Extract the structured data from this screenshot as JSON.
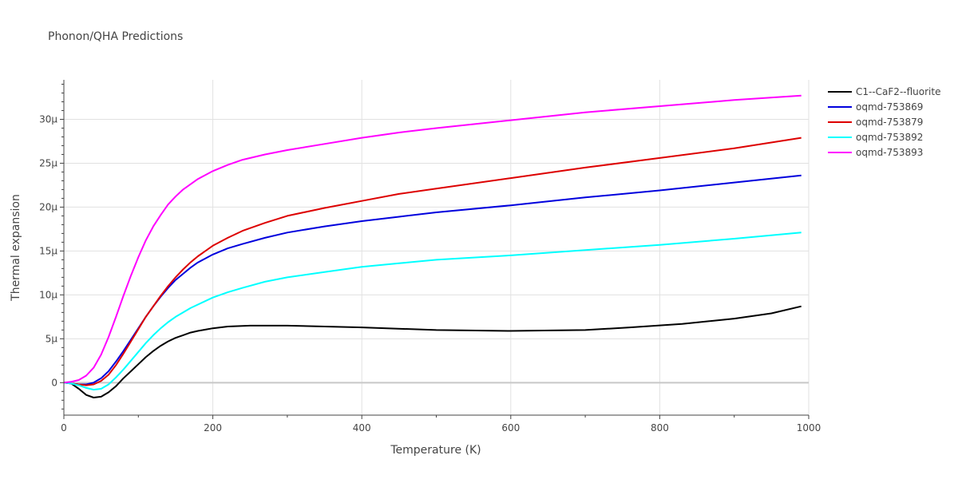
{
  "chart_data": {
    "type": "line",
    "title": "Phonon/QHA Predictions",
    "xlabel": "Temperature (K)",
    "ylabel": "Thermal expansion",
    "xlim": [
      0,
      1000
    ],
    "ylim": [
      -3.7e-06,
      3.45e-05
    ],
    "x_ticks": [
      0,
      200,
      400,
      600,
      800,
      1000
    ],
    "x_tick_labels": [
      "0",
      "200",
      "400",
      "600",
      "800",
      "1000"
    ],
    "y_ticks": [
      0,
      5e-06,
      1e-05,
      1.5e-05,
      2e-05,
      2.5e-05,
      3e-05
    ],
    "y_tick_labels": [
      "0",
      "5μ",
      "10μ",
      "15μ",
      "20μ",
      "25μ",
      "30μ"
    ],
    "grid": true,
    "legend_position": "top-right",
    "series": [
      {
        "name": "C1--CaF2--fluorite",
        "color": "#000000",
        "points": [
          [
            0,
            0
          ],
          [
            10,
            -1e-07
          ],
          [
            20,
            -7e-07
          ],
          [
            30,
            -1.4e-06
          ],
          [
            40,
            -1.7e-06
          ],
          [
            50,
            -1.6e-06
          ],
          [
            60,
            -1.1e-06
          ],
          [
            70,
            -4e-07
          ],
          [
            80,
            5e-07
          ],
          [
            90,
            1.3e-06
          ],
          [
            100,
            2.1e-06
          ],
          [
            110,
            2.9e-06
          ],
          [
            120,
            3.6e-06
          ],
          [
            130,
            4.2e-06
          ],
          [
            140,
            4.7e-06
          ],
          [
            150,
            5.1e-06
          ],
          [
            160,
            5.4e-06
          ],
          [
            170,
            5.7e-06
          ],
          [
            180,
            5.9e-06
          ],
          [
            200,
            6.2e-06
          ],
          [
            220,
            6.4e-06
          ],
          [
            250,
            6.5e-06
          ],
          [
            300,
            6.5e-06
          ],
          [
            400,
            6.3e-06
          ],
          [
            500,
            6e-06
          ],
          [
            600,
            5.9e-06
          ],
          [
            700,
            6e-06
          ],
          [
            760,
            6.3e-06
          ],
          [
            830,
            6.7e-06
          ],
          [
            900,
            7.3e-06
          ],
          [
            950,
            7.9e-06
          ],
          [
            990,
            8.7e-06
          ]
        ]
      },
      {
        "name": "oqmd-753869",
        "color": "#0000dd",
        "points": [
          [
            0,
            0
          ],
          [
            10,
            -1e-07
          ],
          [
            20,
            -2e-07
          ],
          [
            30,
            -2e-07
          ],
          [
            40,
            0
          ],
          [
            50,
            5e-07
          ],
          [
            60,
            1.3e-06
          ],
          [
            70,
            2.4e-06
          ],
          [
            80,
            3.6e-06
          ],
          [
            90,
            4.9e-06
          ],
          [
            100,
            6.2e-06
          ],
          [
            110,
            7.5e-06
          ],
          [
            120,
            8.7e-06
          ],
          [
            130,
            9.8e-06
          ],
          [
            140,
            1.08e-05
          ],
          [
            150,
            1.17e-05
          ],
          [
            160,
            1.24e-05
          ],
          [
            170,
            1.31e-05
          ],
          [
            180,
            1.37e-05
          ],
          [
            200,
            1.46e-05
          ],
          [
            220,
            1.53e-05
          ],
          [
            240,
            1.58e-05
          ],
          [
            270,
            1.65e-05
          ],
          [
            300,
            1.71e-05
          ],
          [
            350,
            1.78e-05
          ],
          [
            400,
            1.84e-05
          ],
          [
            450,
            1.89e-05
          ],
          [
            500,
            1.94e-05
          ],
          [
            600,
            2.02e-05
          ],
          [
            700,
            2.11e-05
          ],
          [
            800,
            2.19e-05
          ],
          [
            900,
            2.28e-05
          ],
          [
            990,
            2.36e-05
          ]
        ]
      },
      {
        "name": "oqmd-753879",
        "color": "#dd0000",
        "points": [
          [
            0,
            0
          ],
          [
            10,
            -1e-07
          ],
          [
            20,
            -2e-07
          ],
          [
            30,
            -3e-07
          ],
          [
            40,
            -2e-07
          ],
          [
            50,
            2e-07
          ],
          [
            60,
            9e-07
          ],
          [
            70,
            2e-06
          ],
          [
            80,
            3.3e-06
          ],
          [
            90,
            4.7e-06
          ],
          [
            100,
            6.1e-06
          ],
          [
            110,
            7.5e-06
          ],
          [
            120,
            8.7e-06
          ],
          [
            130,
            9.9e-06
          ],
          [
            140,
            1.1e-05
          ],
          [
            150,
            1.2e-05
          ],
          [
            160,
            1.29e-05
          ],
          [
            170,
            1.37e-05
          ],
          [
            180,
            1.44e-05
          ],
          [
            200,
            1.56e-05
          ],
          [
            220,
            1.65e-05
          ],
          [
            240,
            1.73e-05
          ],
          [
            270,
            1.82e-05
          ],
          [
            300,
            1.9e-05
          ],
          [
            350,
            1.99e-05
          ],
          [
            400,
            2.07e-05
          ],
          [
            450,
            2.15e-05
          ],
          [
            500,
            2.21e-05
          ],
          [
            600,
            2.33e-05
          ],
          [
            700,
            2.45e-05
          ],
          [
            800,
            2.56e-05
          ],
          [
            900,
            2.67e-05
          ],
          [
            990,
            2.79e-05
          ]
        ]
      },
      {
        "name": "oqmd-753892",
        "color": "#00ffff",
        "points": [
          [
            0,
            0
          ],
          [
            10,
            -1e-07
          ],
          [
            20,
            -3e-07
          ],
          [
            30,
            -6e-07
          ],
          [
            40,
            -8e-07
          ],
          [
            50,
            -7e-07
          ],
          [
            60,
            -2e-07
          ],
          [
            70,
            6e-07
          ],
          [
            80,
            1.5e-06
          ],
          [
            90,
            2.5e-06
          ],
          [
            100,
            3.5e-06
          ],
          [
            110,
            4.5e-06
          ],
          [
            120,
            5.4e-06
          ],
          [
            130,
            6.2e-06
          ],
          [
            140,
            6.9e-06
          ],
          [
            150,
            7.5e-06
          ],
          [
            160,
            8e-06
          ],
          [
            170,
            8.5e-06
          ],
          [
            180,
            8.9e-06
          ],
          [
            200,
            9.7e-06
          ],
          [
            220,
            1.03e-05
          ],
          [
            240,
            1.08e-05
          ],
          [
            270,
            1.15e-05
          ],
          [
            300,
            1.2e-05
          ],
          [
            350,
            1.26e-05
          ],
          [
            400,
            1.32e-05
          ],
          [
            450,
            1.36e-05
          ],
          [
            500,
            1.4e-05
          ],
          [
            600,
            1.45e-05
          ],
          [
            700,
            1.51e-05
          ],
          [
            800,
            1.57e-05
          ],
          [
            900,
            1.64e-05
          ],
          [
            990,
            1.71e-05
          ]
        ]
      },
      {
        "name": "oqmd-753893",
        "color": "#ff00ff",
        "points": [
          [
            0,
            0
          ],
          [
            10,
            1e-07
          ],
          [
            20,
            3e-07
          ],
          [
            30,
            8e-07
          ],
          [
            40,
            1.7e-06
          ],
          [
            50,
            3.2e-06
          ],
          [
            60,
            5.2e-06
          ],
          [
            70,
            7.5e-06
          ],
          [
            80,
            9.9e-06
          ],
          [
            90,
            1.22e-05
          ],
          [
            100,
            1.43e-05
          ],
          [
            110,
            1.62e-05
          ],
          [
            120,
            1.78e-05
          ],
          [
            130,
            1.91e-05
          ],
          [
            140,
            2.03e-05
          ],
          [
            150,
            2.12e-05
          ],
          [
            160,
            2.2e-05
          ],
          [
            170,
            2.26e-05
          ],
          [
            180,
            2.32e-05
          ],
          [
            200,
            2.41e-05
          ],
          [
            220,
            2.48e-05
          ],
          [
            240,
            2.54e-05
          ],
          [
            270,
            2.6e-05
          ],
          [
            300,
            2.65e-05
          ],
          [
            350,
            2.72e-05
          ],
          [
            400,
            2.79e-05
          ],
          [
            450,
            2.85e-05
          ],
          [
            500,
            2.9e-05
          ],
          [
            600,
            2.99e-05
          ],
          [
            700,
            3.08e-05
          ],
          [
            800,
            3.15e-05
          ],
          [
            900,
            3.22e-05
          ],
          [
            990,
            3.27e-05
          ]
        ]
      }
    ]
  }
}
